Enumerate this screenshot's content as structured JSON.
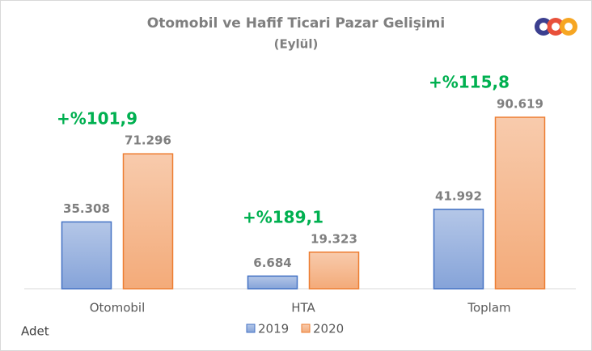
{
  "chart_data": {
    "type": "bar",
    "title": "Otomobil ve Hafif Ticari Pazar Gelişimi",
    "subtitle": "(Eylül)",
    "unit_label": "Adet",
    "categories": [
      "Otomobil",
      "HTA",
      "Toplam"
    ],
    "series": [
      {
        "name": "2019",
        "color": "#4472c4",
        "values": [
          35308,
          6684,
          41992
        ],
        "value_labels": [
          "35.308",
          "6.684",
          "41.992"
        ]
      },
      {
        "name": "2020",
        "color": "#ed7d31",
        "values": [
          71296,
          19323,
          90619
        ],
        "value_labels": [
          "71.296",
          "19.323",
          "90.619"
        ]
      }
    ],
    "growth_labels": [
      "+%101,9",
      "+%189,1",
      "+%115,8"
    ],
    "growth_color": "#00b050"
  }
}
